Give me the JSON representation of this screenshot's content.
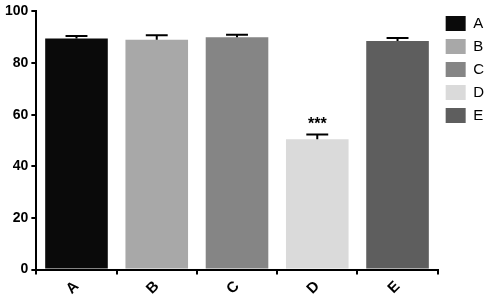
{
  "chart_data": {
    "type": "bar",
    "categories": [
      "A",
      "B",
      "C",
      "D",
      "E"
    ],
    "values": [
      89.5,
      89,
      90,
      50.5,
      88.5
    ],
    "errors": [
      1,
      1.8,
      1,
      1.8,
      1.2
    ],
    "colors": [
      "#0a0a0a",
      "#a8a8a8",
      "#858585",
      "#dadada",
      "#5e5e5e"
    ],
    "annotations": [
      {
        "category": "D",
        "text": "***"
      }
    ],
    "ylim": [
      0,
      100
    ],
    "yticks": [
      0,
      20,
      40,
      60,
      80,
      100
    ],
    "grid": false,
    "legend": "right"
  }
}
